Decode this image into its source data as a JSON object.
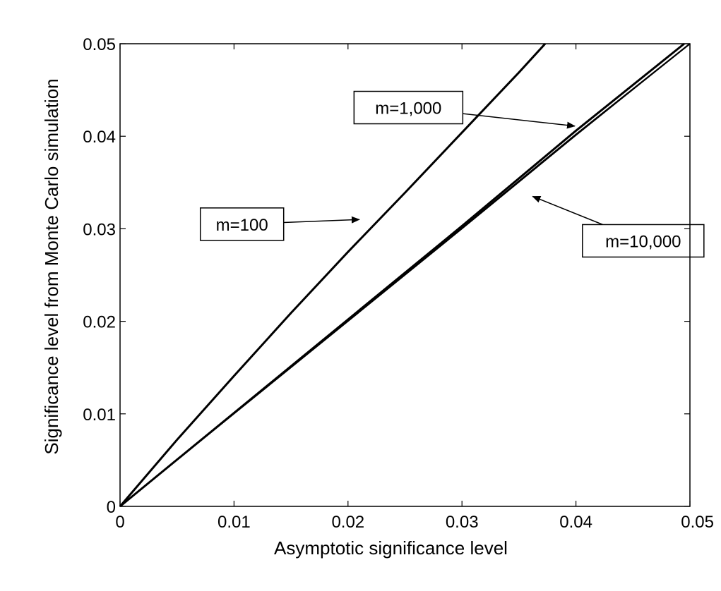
{
  "chart_data": {
    "type": "line",
    "xlabel": "Asymptotic significance level",
    "ylabel": "Significance level from Monte Carlo simulation",
    "xlim": [
      0,
      0.05
    ],
    "ylim": [
      0,
      0.05
    ],
    "x_ticks": [
      0,
      0.01,
      0.02,
      0.03,
      0.04,
      0.05
    ],
    "x_tick_labels": [
      "0",
      "0.01",
      "0.02",
      "0.03",
      "0.04",
      "0.05"
    ],
    "y_ticks": [
      0,
      0.01,
      0.02,
      0.03,
      0.04,
      0.05
    ],
    "y_tick_labels": [
      "0",
      "0.01",
      "0.02",
      "0.03",
      "0.04",
      "0.05"
    ],
    "grid": false,
    "legend": "none",
    "line_color": "#000000",
    "series": [
      {
        "x": [
          0,
          0.005,
          0.01,
          0.015,
          0.02,
          0.025,
          0.03,
          0.035,
          0.0373
        ],
        "y": [
          0,
          0.0072,
          0.0141,
          0.0209,
          0.0275,
          0.0339,
          0.0404,
          0.0469,
          0.05
        ]
      },
      {
        "x": [
          0,
          0.01,
          0.02,
          0.03,
          0.04,
          0.0495
        ],
        "y": [
          0,
          0.0101,
          0.0202,
          0.0303,
          0.0406,
          0.05
        ]
      },
      {
        "x": [
          0,
          0.01,
          0.02,
          0.03,
          0.04,
          0.05
        ],
        "y": [
          0,
          0.0101,
          0.0201,
          0.0301,
          0.0402,
          0.05
        ]
      },
      {
        "x": [
          0,
          0.01,
          0.02,
          0.03,
          0.04,
          0.05
        ],
        "y": [
          0,
          0.01,
          0.02,
          0.03,
          0.0401,
          0.05
        ]
      }
    ],
    "annotations": [
      {
        "text": "m=100",
        "box_at": [
          0.0107,
          0.0305
        ],
        "arrow_to": [
          0.021,
          0.031
        ]
      },
      {
        "text": "m=1,000",
        "box_at": [
          0.0253,
          0.0431
        ],
        "arrow_to": [
          0.0399,
          0.0411
        ]
      },
      {
        "text": "m=10,000",
        "box_at": [
          0.0459,
          0.0287
        ],
        "arrow_to": [
          0.0362,
          0.0335
        ]
      }
    ]
  }
}
